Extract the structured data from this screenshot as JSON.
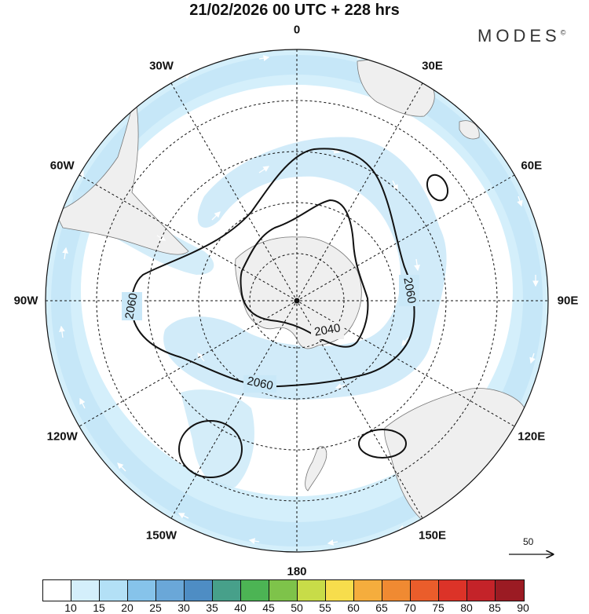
{
  "title": "21/02/2026  00 UTC  + 228 hrs",
  "brand": "MODES",
  "brand_mark": "©",
  "map": {
    "projection": "south-polar-stereographic",
    "longitude_labels": [
      {
        "text": "0",
        "angle": 0
      },
      {
        "text": "30E",
        "angle": 30
      },
      {
        "text": "60E",
        "angle": 60
      },
      {
        "text": "90E",
        "angle": 90
      },
      {
        "text": "120E",
        "angle": 120
      },
      {
        "text": "150E",
        "angle": 150
      },
      {
        "text": "180",
        "angle": 180
      },
      {
        "text": "150W",
        "angle": 210
      },
      {
        "text": "120W",
        "angle": 240
      },
      {
        "text": "90W",
        "angle": 270
      },
      {
        "text": "60W",
        "angle": 300
      },
      {
        "text": "30W",
        "angle": 330
      }
    ],
    "contour_labels": [
      "2060",
      "2060",
      "2060",
      "2040"
    ],
    "colors": {
      "land": "#efefef",
      "ocean": "#ffffff",
      "wind_low": "#d8eefa",
      "wind_mid": "#b9ddf3",
      "contour": "#111111"
    }
  },
  "vector_reference": {
    "value": "50"
  },
  "colorbar": {
    "ticks": [
      "10",
      "15",
      "20",
      "25",
      "30",
      "35",
      "40",
      "45",
      "50",
      "55",
      "60",
      "65",
      "70",
      "75",
      "80",
      "85",
      "90"
    ],
    "colors": [
      "#ffffff",
      "#d4effb",
      "#b3e0f6",
      "#86c3ea",
      "#6aa7d8",
      "#4e8dc4",
      "#47a08a",
      "#4cb454",
      "#7ec34a",
      "#c8dc48",
      "#f7dd4c",
      "#f5ad3d",
      "#f08a32",
      "#ea5d2b",
      "#dc3328",
      "#c42329",
      "#9b1b23"
    ]
  }
}
